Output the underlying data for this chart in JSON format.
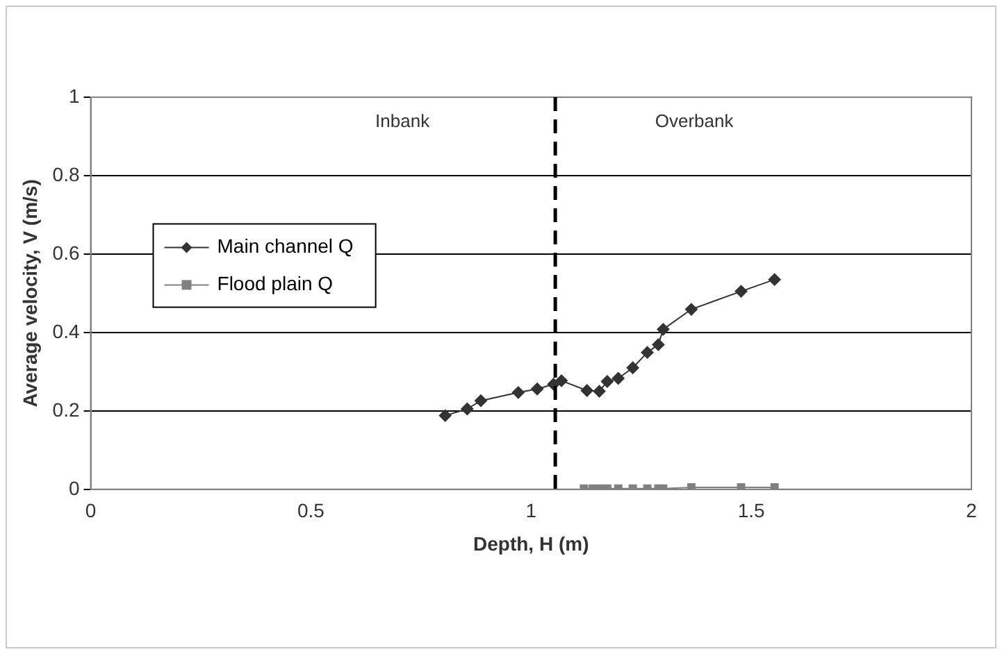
{
  "chart_data": {
    "type": "line",
    "xlabel": "Depth, H (m)",
    "ylabel": "Average velocity, V (m/s)",
    "xlim": [
      0,
      2
    ],
    "xticks": [
      0,
      0.5,
      1,
      1.5,
      2
    ],
    "ylim": [
      0,
      1
    ],
    "yticks": [
      0,
      0.2,
      0.4,
      0.6,
      0.8,
      1
    ],
    "grid": "y",
    "legend": "left",
    "series": [
      {
        "name": "Main channel Q",
        "color": "#333333",
        "marker": "diamond",
        "x": [
          0.805,
          0.855,
          0.886,
          0.971,
          1.014,
          1.051,
          1.069,
          1.127,
          1.155,
          1.173,
          1.198,
          1.231,
          1.264,
          1.289,
          1.3,
          1.364,
          1.477,
          1.553
        ],
        "values": [
          0.188,
          0.205,
          0.226,
          0.247,
          0.256,
          0.268,
          0.277,
          0.252,
          0.25,
          0.275,
          0.283,
          0.31,
          0.349,
          0.369,
          0.408,
          0.459,
          0.505,
          0.535
        ]
      },
      {
        "name": "Flood plain Q",
        "color": "#808080",
        "marker": "square",
        "x": [
          1.12,
          1.14,
          1.155,
          1.173,
          1.198,
          1.231,
          1.264,
          1.289,
          1.3,
          1.364,
          1.477,
          1.553
        ],
        "values": [
          0.002,
          0.002,
          0.002,
          0.002,
          0.002,
          0.002,
          0.002,
          0.002,
          0.002,
          0.005,
          0.005,
          0.005
        ]
      }
    ],
    "ref_lines": [
      {
        "axis": "x",
        "value": 1.055,
        "color": "#000000",
        "line_style": "dashed"
      }
    ],
    "annotations": [
      "Inbank",
      "Overbank"
    ]
  }
}
